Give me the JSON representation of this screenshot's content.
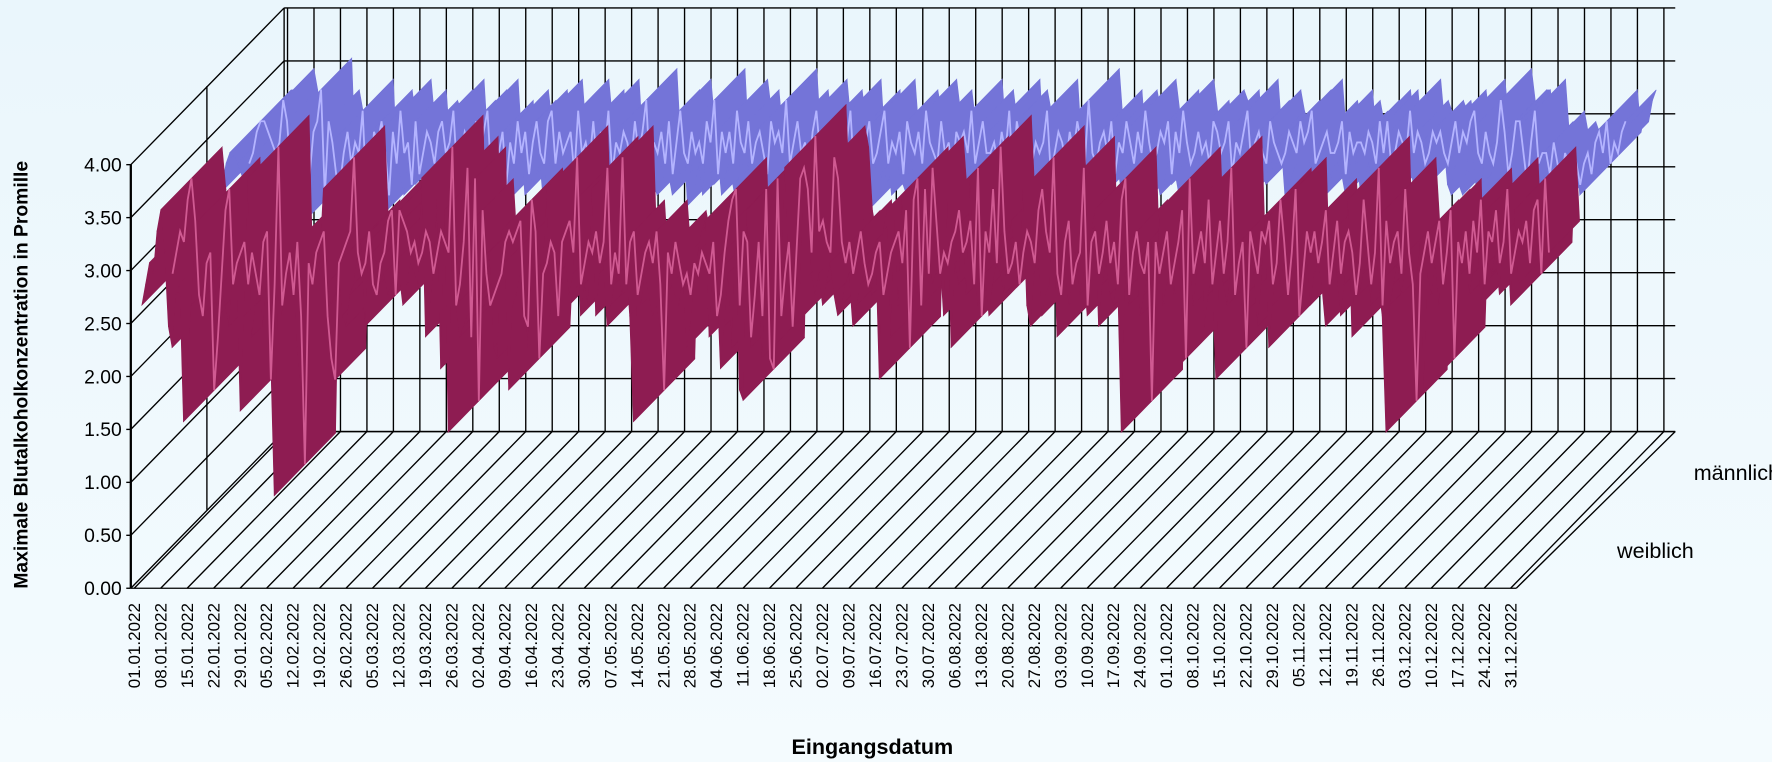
{
  "chart_data": {
    "type": "line3d",
    "y_label": "Maximale Blutalkoholkonzentration in Promille",
    "x_label": "Eingangsdatum",
    "ylim": [
      0,
      4
    ],
    "yticks": [
      {
        "value": 0,
        "label": "0.00"
      },
      {
        "value": 0.5,
        "label": "0.50"
      },
      {
        "value": 1,
        "label": "1.00"
      },
      {
        "value": 1.5,
        "label": "1.50"
      },
      {
        "value": 2,
        "label": "2.00"
      },
      {
        "value": 2.5,
        "label": "2.50"
      },
      {
        "value": 3,
        "label": "3.00"
      },
      {
        "value": 3.5,
        "label": "3.50"
      },
      {
        "value": 4,
        "label": "4.00"
      }
    ],
    "grid": true,
    "categories": [
      "01.01.2022",
      null,
      null,
      null,
      null,
      null,
      null,
      "08.01.2022",
      null,
      null,
      null,
      null,
      null,
      null,
      "15.01.2022",
      null,
      null,
      null,
      null,
      null,
      null,
      "22.01.2022",
      null,
      null,
      null,
      null,
      null,
      null,
      "29.01.2022",
      null,
      null,
      null,
      null,
      null,
      null,
      "05.02.2022",
      null,
      null,
      null,
      null,
      null,
      null,
      "12.02.2022",
      null,
      null,
      null,
      null,
      null,
      null,
      "19.02.2022",
      null,
      null,
      null,
      null,
      null,
      null,
      "26.02.2022",
      null,
      null,
      null,
      null,
      null,
      null,
      "05.03.2022",
      null,
      null,
      null,
      null,
      null,
      null,
      "12.03.2022",
      null,
      null,
      null,
      null,
      null,
      null,
      "19.03.2022",
      null,
      null,
      null,
      null,
      null,
      null,
      "26.03.2022",
      null,
      null,
      null,
      null,
      null,
      null,
      "02.04.2022",
      null,
      null,
      null,
      null,
      null,
      null,
      "09.04.2022",
      null,
      null,
      null,
      null,
      null,
      null,
      "16.04.2022",
      null,
      null,
      null,
      null,
      null,
      null,
      "23.04.2022",
      null,
      null,
      null,
      null,
      null,
      null,
      "30.04.2022",
      null,
      null,
      null,
      null,
      null,
      null,
      "07.05.2022",
      null,
      null,
      null,
      null,
      null,
      null,
      "14.05.2022",
      null,
      null,
      null,
      null,
      null,
      null,
      "21.05.2022",
      null,
      null,
      null,
      null,
      null,
      null,
      "28.05.2022",
      null,
      null,
      null,
      null,
      null,
      null,
      "04.06.2022",
      null,
      null,
      null,
      null,
      null,
      null,
      "11.06.2022",
      null,
      null,
      null,
      null,
      null,
      null,
      "18.06.2022",
      null,
      null,
      null,
      null,
      null,
      null,
      "25.06.2022",
      null,
      null,
      null,
      null,
      null,
      null,
      "02.07.2022",
      null,
      null,
      null,
      null,
      null,
      null,
      "09.07.2022",
      null,
      null,
      null,
      null,
      null,
      null,
      "16.07.2022",
      null,
      null,
      null,
      null,
      null,
      null,
      "23.07.2022",
      null,
      null,
      null,
      null,
      null,
      null,
      "30.07.2022",
      null,
      null,
      null,
      null,
      null,
      null,
      "06.08.2022",
      null,
      null,
      null,
      null,
      null,
      null,
      "13.08.2022",
      null,
      null,
      null,
      null,
      null,
      null,
      "20.08.2022",
      null,
      null,
      null,
      null,
      null,
      null,
      "27.08.2022",
      null,
      null,
      null,
      null,
      null,
      null,
      "03.09.2022",
      null,
      null,
      null,
      null,
      null,
      null,
      "10.09.2022",
      null,
      null,
      null,
      null,
      null,
      null,
      "17.09.2022",
      null,
      null,
      null,
      null,
      null,
      null,
      "24.09.2022",
      null,
      null,
      null,
      null,
      null,
      null,
      "01.10.2022",
      null,
      null,
      null,
      null,
      null,
      null,
      "08.10.2022",
      null,
      null,
      null,
      null,
      null,
      null,
      "15.10.2022",
      null,
      null,
      null,
      null,
      null,
      null,
      "22.10.2022",
      null,
      null,
      null,
      null,
      null,
      null,
      "29.10.2022",
      null,
      null,
      null,
      null,
      null,
      null,
      "05.11.2022",
      null,
      null,
      null,
      null,
      null,
      null,
      "12.11.2022",
      null,
      null,
      null,
      null,
      null,
      null,
      "19.11.2022",
      null,
      null,
      null,
      null,
      null,
      null,
      "26.11.2022",
      null,
      null,
      null,
      null,
      null,
      null,
      "03.12.2022",
      null,
      null,
      null,
      null,
      null,
      null,
      "10.12.2022",
      null,
      null,
      null,
      null,
      null,
      null,
      "17.12.2022",
      null,
      null,
      null,
      null,
      null,
      null,
      "24.12.2022",
      null,
      null,
      null,
      null,
      null,
      null,
      "31.12.2022"
    ],
    "series": [
      {
        "name": "weiblich",
        "color": "#8e1c52",
        "line_color": "#d05a92",
        "values": [
          2.6,
          2.8,
          3.0,
          2.9,
          3.3,
          3.5,
          3.1,
          2.4,
          2.2,
          2.7,
          2.8,
          1.5,
          2.0,
          2.6,
          3.2,
          3.4,
          2.5,
          2.7,
          2.8,
          2.9,
          2.5,
          2.8,
          2.6,
          2.4,
          2.9,
          3.0,
          1.6,
          2.5,
          3.8,
          2.3,
          2.6,
          2.8,
          2.4,
          2.9,
          2.2,
          0.8,
          2.7,
          2.5,
          2.8,
          2.9,
          3.0,
          2.2,
          1.8,
          1.6,
          2.7,
          2.8,
          2.9,
          3.0,
          3.7,
          2.8,
          2.6,
          2.7,
          3.0,
          2.5,
          2.4,
          2.7,
          2.8,
          3.1,
          3.2,
          2.4,
          3.2,
          3.1,
          3.0,
          2.8,
          2.9,
          2.7,
          2.8,
          3.0,
          2.9,
          2.6,
          2.8,
          3.0,
          2.9,
          2.8,
          3.8,
          2.3,
          2.5,
          2.9,
          3.6,
          2.0,
          3.5,
          1.4,
          3.2,
          2.6,
          2.3,
          2.4,
          2.5,
          2.6,
          2.9,
          3.0,
          2.9,
          3.0,
          3.1,
          2.2,
          2.1,
          3.3,
          3.0,
          1.8,
          2.6,
          2.7,
          2.9,
          2.8,
          2.2,
          2.9,
          3.0,
          3.1,
          2.8,
          3.7,
          2.5,
          2.7,
          2.9,
          2.8,
          3.0,
          2.7,
          2.9,
          3.6,
          2.5,
          2.8,
          2.6,
          3.7,
          2.5,
          2.9,
          3.0,
          2.4,
          2.6,
          2.8,
          2.9,
          2.7,
          3.0,
          2.5,
          1.5,
          2.8,
          2.6,
          2.9,
          2.7,
          2.5,
          2.6,
          2.4,
          2.7,
          2.6,
          2.8,
          2.7,
          2.6,
          2.9,
          2.2,
          2.4,
          2.8,
          3.1,
          3.3,
          3.4,
          2.3,
          3.0,
          2.9,
          2.0,
          2.4,
          2.9,
          2.2,
          3.4,
          1.8,
          1.7,
          3.5,
          2.2,
          2.6,
          2.9,
          2.1,
          2.8,
          3.5,
          3.6,
          3.4,
          2.8,
          3.9,
          3.0,
          3.1,
          2.9,
          2.8,
          3.7,
          3.5,
          2.9,
          2.7,
          2.9,
          2.6,
          2.8,
          3.0,
          2.7,
          2.5,
          2.6,
          2.8,
          2.9,
          2.4,
          2.6,
          2.8,
          2.9,
          3.0,
          2.7,
          3.2,
          1.9,
          3.3,
          3.5,
          2.3,
          3.4,
          2.6,
          3.6,
          3.1,
          2.6,
          2.8,
          2.7,
          2.9,
          3.0,
          3.2,
          2.8,
          2.9,
          3.1,
          2.5,
          3.6,
          2.2,
          3.0,
          2.8,
          3.4,
          2.7,
          3.8,
          3.0,
          2.6,
          2.7,
          2.9,
          2.5,
          2.8,
          3.0,
          2.9,
          2.7,
          3.2,
          3.4,
          3.0,
          2.8,
          3.7,
          2.6,
          2.4,
          2.9,
          3.1,
          2.5,
          2.7,
          2.8,
          3.6,
          2.3,
          2.9,
          3.0,
          2.6,
          2.8,
          3.1,
          2.7,
          2.9,
          2.5,
          3.3,
          3.5,
          2.4,
          2.8,
          3.0,
          2.7,
          2.6,
          2.9,
          1.4,
          2.9,
          2.6,
          2.8,
          3.0,
          2.5,
          2.7,
          2.9,
          3.2,
          1.8,
          3.5,
          2.6,
          2.8,
          3.0,
          2.7,
          3.3,
          2.5,
          2.8,
          3.1,
          2.6,
          2.9,
          3.6,
          2.4,
          2.7,
          2.9,
          1.9,
          3.0,
          2.8,
          2.6,
          3.0,
          2.9,
          3.1,
          2.5,
          2.7,
          3.3,
          2.9,
          2.4,
          2.8,
          3.4,
          2.2,
          2.6,
          3.0,
          2.8,
          3.0,
          2.7,
          2.9,
          3.2,
          2.5,
          2.8,
          3.1,
          2.6,
          2.9,
          3.0,
          2.8,
          2.4,
          2.7,
          3.3,
          2.9,
          2.5,
          2.8,
          3.6,
          2.3,
          3.1,
          2.7,
          2.9,
          3.0,
          2.6,
          3.4,
          2.8,
          2.5,
          1.4,
          2.6,
          2.8,
          3.0,
          2.7,
          2.9,
          3.1,
          2.5,
          2.8,
          3.2,
          1.8,
          2.9,
          2.7,
          3.0,
          2.6,
          3.1,
          2.8,
          3.3,
          2.5,
          3.0,
          2.9,
          3.2,
          2.7,
          2.9,
          3.4,
          2.6,
          2.8,
          3.0,
          2.9,
          3.1,
          2.7,
          3.2,
          3.3,
          2.6,
          3.5,
          2.8
        ]
      },
      {
        "name": "männlich",
        "color": "#7474d8",
        "line_color": "#b4b4ff",
        "values": [
          2.9,
          3.0,
          3.2,
          3.3,
          3.3,
          3.2,
          3.1,
          3.0,
          3.1,
          3.5,
          3.3,
          2.8,
          2.9,
          3.0,
          3.1,
          2.9,
          2.8,
          3.2,
          3.3,
          3.6,
          2.6,
          3.3,
          3.1,
          2.8,
          2.7,
          3.0,
          3.2,
          2.9,
          3.1,
          3.0,
          3.4,
          2.6,
          2.7,
          3.2,
          3.1,
          3.3,
          3.0,
          2.6,
          3.2,
          2.9,
          3.4,
          3.0,
          3.1,
          2.7,
          3.3,
          2.8,
          3.0,
          3.2,
          3.1,
          2.9,
          3.2,
          3.3,
          3.0,
          3.1,
          3.4,
          2.8,
          3.0,
          3.2,
          3.1,
          2.9,
          3.3,
          3.0,
          3.2,
          3.4,
          2.8,
          3.1,
          3.0,
          3.2,
          2.7,
          3.1,
          2.9,
          3.3,
          3.0,
          3.2,
          2.8,
          3.1,
          3.3,
          3.0,
          2.9,
          3.3,
          3.4,
          2.9,
          3.2,
          3.0,
          3.1,
          3.2,
          2.8,
          3.4,
          3.0,
          3.1,
          2.9,
          3.3,
          2.9,
          3.2,
          3.0,
          3.4,
          2.8,
          3.1,
          3.0,
          3.2,
          3.1,
          2.9,
          3.3,
          3.0,
          3.2,
          3.5,
          2.8,
          3.1,
          3.0,
          3.2,
          2.9,
          3.3,
          2.8,
          3.1,
          3.4,
          3.0,
          2.9,
          3.2,
          3.0,
          3.1,
          2.9,
          3.3,
          3.1,
          3.5,
          2.8,
          3.2,
          3.0,
          3.2,
          2.9,
          3.4,
          3.1,
          3.0,
          3.3,
          2.9,
          3.1,
          3.2,
          3.0,
          2.8,
          3.3,
          3.1,
          3.2,
          3.0,
          3.5,
          2.9,
          3.1,
          3.3,
          3.0,
          3.1,
          2.8,
          3.2,
          3.4,
          3.0,
          2.9,
          3.1,
          3.3,
          3.0,
          2.9,
          3.2,
          3.1,
          3.4,
          2.8,
          3.0,
          3.2,
          3.1,
          3.3,
          2.9,
          3.0,
          3.2,
          3.4,
          2.9,
          3.1,
          3.0,
          3.2,
          2.8,
          3.3,
          3.1,
          3.0,
          3.2,
          2.9,
          3.4,
          3.1,
          3.0,
          2.9,
          3.3,
          3.0,
          3.1,
          2.8,
          3.2,
          3.1,
          3.2,
          3.0,
          3.4,
          2.9,
          3.1,
          3.3,
          3.0,
          3.0,
          3.1,
          2.9,
          3.2,
          3.0,
          3.4,
          2.8,
          3.3,
          3.1,
          3.0,
          3.2,
          2.9,
          3.1,
          3.0,
          3.1,
          3.4,
          2.8,
          3.0,
          3.2,
          3.1,
          2.9,
          3.2,
          3.0,
          3.3,
          3.1,
          2.9,
          3.5,
          3.0,
          2.9,
          3.1,
          3.2,
          3.0,
          3.3,
          2.8,
          3.1,
          3.0,
          3.3,
          3.1,
          2.9,
          3.2,
          3.0,
          3.4,
          3.1,
          2.9,
          3.0,
          3.2,
          3.1,
          3.3,
          2.8,
          3.2,
          3.0,
          3.4,
          3.1,
          2.9,
          3.0,
          3.2,
          3.0,
          3.1,
          2.9,
          3.3,
          3.2,
          3.0,
          3.1,
          3.3,
          2.8,
          3.1,
          3.0,
          3.2,
          3.4,
          2.9,
          3.1,
          3.2,
          3.0,
          2.9,
          3.3,
          3.1,
          3.0,
          2.9,
          3.0,
          3.2,
          3.1,
          3.0,
          3.3,
          3.1,
          3.2,
          3.4,
          2.9,
          3.0,
          3.1,
          3.2,
          3.0,
          3.0,
          3.1,
          3.3,
          2.8,
          3.2,
          3.0,
          3.1,
          3.1,
          3.0,
          3.2,
          3.1,
          2.9,
          3.3,
          3.0,
          3.3,
          2.9,
          3.0,
          3.2,
          3.1,
          3.0,
          3.4,
          3.0,
          3.2,
          3.1,
          2.9,
          3.0,
          3.2,
          3.1,
          3.2,
          3.0,
          2.9,
          3.1,
          3.3,
          3.0,
          3.2,
          3.1,
          3.3,
          3.4,
          3.0,
          2.9,
          3.2,
          3.0,
          2.9,
          3.1,
          3.5,
          3.2,
          2.8,
          3.0,
          3.3,
          3.3,
          3.0,
          2.7,
          3.1,
          3.4,
          2.9,
          3.0,
          3.0,
          2.8,
          3.1,
          2.9,
          2.7,
          3.0,
          2.9,
          2.8,
          2.9,
          2.7,
          2.9,
          3.0,
          2.8,
          3.1,
          3.2,
          3.0,
          3.3,
          2.9,
          3.1,
          3.0,
          3.2,
          3.3
        ]
      }
    ]
  }
}
